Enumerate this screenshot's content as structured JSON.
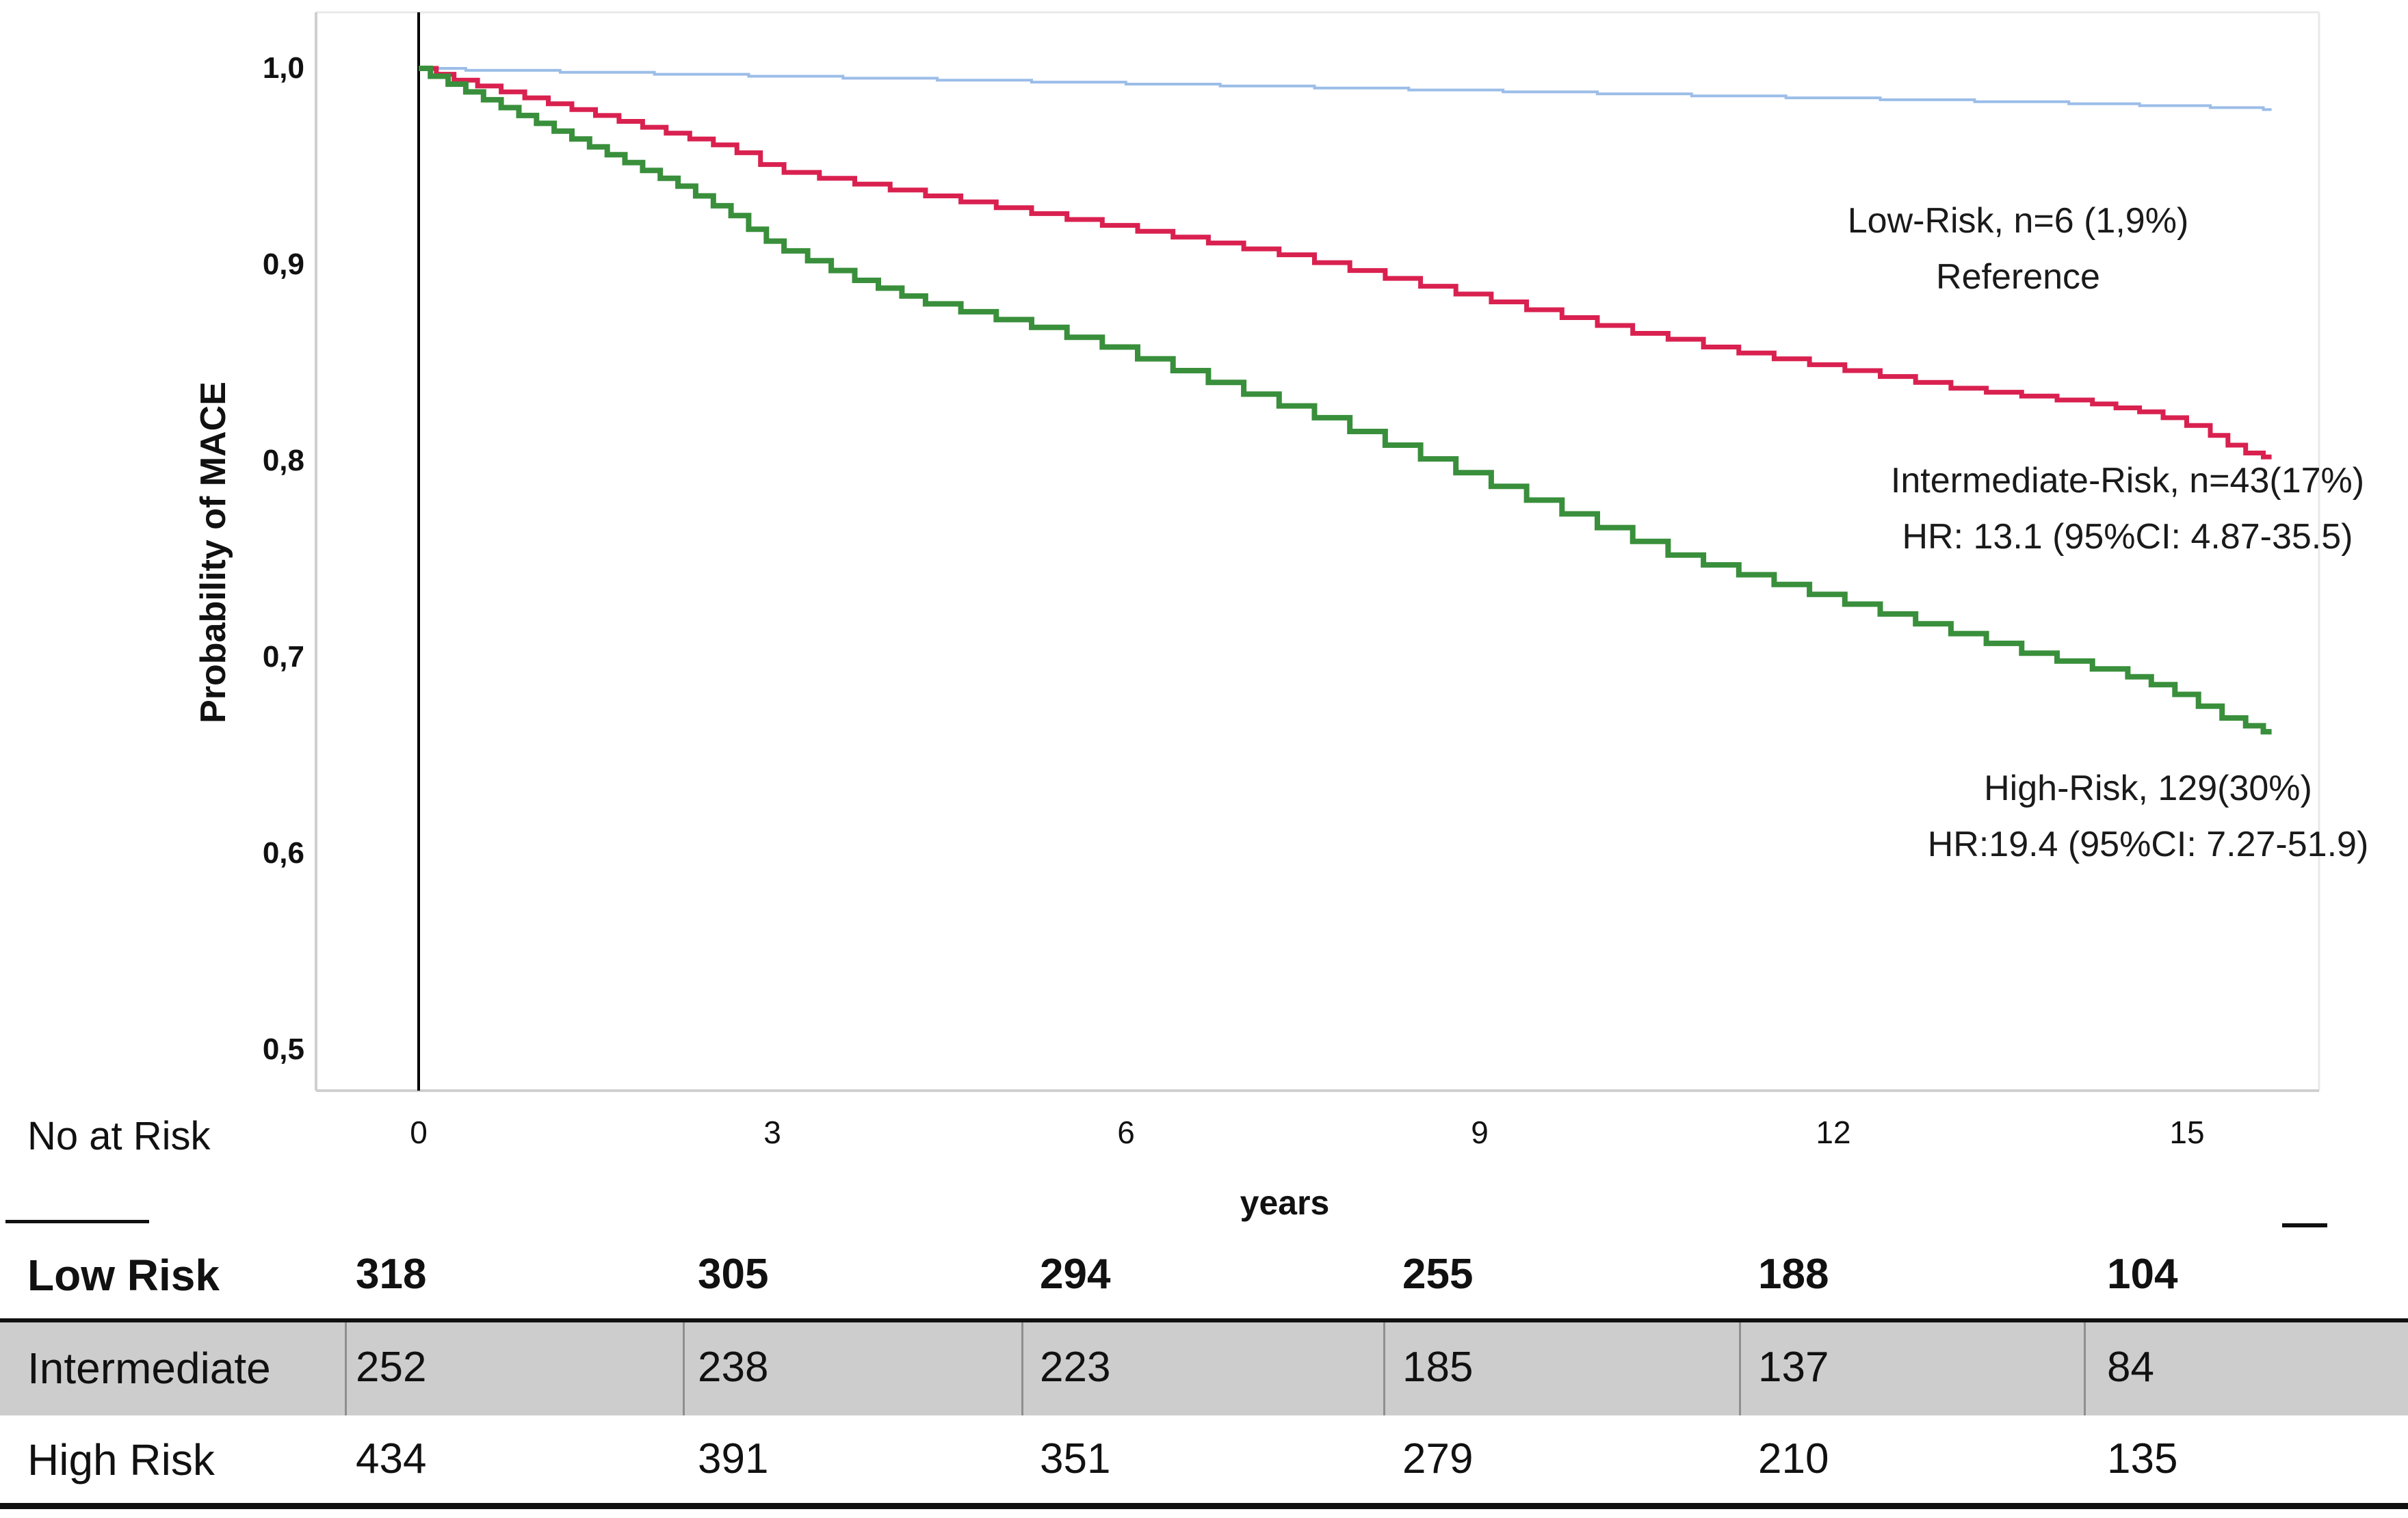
{
  "chart_data": {
    "type": "line",
    "subtype": "kaplan-meier-step",
    "title": "",
    "xlabel": "years",
    "ylabel": "Probability of MACE",
    "x_ticks": [
      "0",
      "3",
      "6",
      "9",
      "12",
      "15"
    ],
    "y_tick_labels": [
      "1,0",
      "0,9",
      "0,8",
      "0,7",
      "0,6",
      "0,5"
    ],
    "y_tick_values": [
      1.0,
      0.9,
      0.8,
      0.7,
      0.6,
      0.5
    ],
    "xlim": [
      -0.9,
      16.1
    ],
    "ylim": [
      0.479,
      1.005
    ],
    "grid": false,
    "legend_position": "annotations-right",
    "axis_color": "#cfcfcf",
    "reference_line_x": 0,
    "series": [
      {
        "name": "Low-Risk",
        "color": "#9bbde8",
        "stroke_width": 4,
        "x": [
          0,
          0.4,
          1.2,
          2.0,
          2.8,
          3.6,
          4.4,
          5.2,
          6.0,
          6.8,
          7.6,
          8.4,
          9.2,
          10.0,
          10.8,
          11.6,
          12.4,
          13.2,
          14.0,
          14.6,
          15.2,
          15.65
        ],
        "y": [
          1.0,
          0.999,
          0.998,
          0.997,
          0.996,
          0.995,
          0.994,
          0.993,
          0.992,
          0.991,
          0.99,
          0.989,
          0.988,
          0.987,
          0.986,
          0.985,
          0.984,
          0.983,
          0.982,
          0.981,
          0.98,
          0.979
        ]
      },
      {
        "name": "Intermediate-Risk",
        "color": "#d92150",
        "stroke_width": 7,
        "x": [
          0,
          0.15,
          0.3,
          0.5,
          0.7,
          0.9,
          1.1,
          1.3,
          1.5,
          1.7,
          1.9,
          2.1,
          2.3,
          2.5,
          2.7,
          2.9,
          3.1,
          3.4,
          3.7,
          4.0,
          4.3,
          4.6,
          4.9,
          5.2,
          5.5,
          5.8,
          6.1,
          6.4,
          6.7,
          7.0,
          7.3,
          7.6,
          7.9,
          8.2,
          8.5,
          8.8,
          9.1,
          9.4,
          9.7,
          10.0,
          10.3,
          10.6,
          10.9,
          11.2,
          11.5,
          11.8,
          12.1,
          12.4,
          12.7,
          13.0,
          13.3,
          13.6,
          13.9,
          14.2,
          14.4,
          14.6,
          14.8,
          15.0,
          15.2,
          15.35,
          15.5,
          15.65
        ],
        "y": [
          1.0,
          0.997,
          0.994,
          0.991,
          0.988,
          0.985,
          0.982,
          0.979,
          0.976,
          0.973,
          0.97,
          0.967,
          0.964,
          0.961,
          0.957,
          0.951,
          0.947,
          0.944,
          0.941,
          0.938,
          0.935,
          0.932,
          0.929,
          0.926,
          0.923,
          0.92,
          0.917,
          0.914,
          0.911,
          0.908,
          0.905,
          0.901,
          0.897,
          0.893,
          0.889,
          0.885,
          0.881,
          0.877,
          0.873,
          0.869,
          0.865,
          0.862,
          0.858,
          0.855,
          0.852,
          0.849,
          0.846,
          0.843,
          0.84,
          0.837,
          0.835,
          0.833,
          0.831,
          0.829,
          0.827,
          0.825,
          0.822,
          0.818,
          0.813,
          0.808,
          0.804,
          0.802
        ]
      },
      {
        "name": "High-Risk",
        "color": "#398f3b",
        "stroke_width": 8,
        "x": [
          0,
          0.1,
          0.25,
          0.4,
          0.55,
          0.7,
          0.85,
          1.0,
          1.15,
          1.3,
          1.45,
          1.6,
          1.75,
          1.9,
          2.05,
          2.2,
          2.35,
          2.5,
          2.65,
          2.8,
          2.95,
          3.1,
          3.3,
          3.5,
          3.7,
          3.9,
          4.1,
          4.3,
          4.6,
          4.9,
          5.2,
          5.5,
          5.8,
          6.1,
          6.4,
          6.7,
          7.0,
          7.3,
          7.6,
          7.9,
          8.2,
          8.5,
          8.8,
          9.1,
          9.4,
          9.7,
          10.0,
          10.3,
          10.6,
          10.9,
          11.2,
          11.5,
          11.8,
          12.1,
          12.4,
          12.7,
          13.0,
          13.3,
          13.6,
          13.9,
          14.2,
          14.5,
          14.7,
          14.9,
          15.1,
          15.3,
          15.5,
          15.65
        ],
        "y": [
          1.0,
          0.996,
          0.992,
          0.988,
          0.984,
          0.98,
          0.976,
          0.972,
          0.968,
          0.964,
          0.96,
          0.956,
          0.952,
          0.948,
          0.944,
          0.94,
          0.935,
          0.93,
          0.925,
          0.918,
          0.912,
          0.907,
          0.902,
          0.897,
          0.892,
          0.888,
          0.884,
          0.88,
          0.876,
          0.872,
          0.868,
          0.863,
          0.858,
          0.852,
          0.846,
          0.84,
          0.834,
          0.828,
          0.822,
          0.815,
          0.808,
          0.801,
          0.794,
          0.787,
          0.78,
          0.773,
          0.766,
          0.759,
          0.752,
          0.747,
          0.742,
          0.737,
          0.732,
          0.727,
          0.722,
          0.717,
          0.712,
          0.707,
          0.702,
          0.698,
          0.694,
          0.69,
          0.686,
          0.681,
          0.675,
          0.669,
          0.665,
          0.662
        ]
      }
    ],
    "annotations": [
      {
        "lines": [
          "Low-Risk, n=6 (1,9%)",
          "Reference"
        ]
      },
      {
        "lines": [
          "Intermediate-Risk, n=43(17%)",
          "HR: 13.1 (95%CI: 4.87-35.5)"
        ]
      },
      {
        "lines": [
          "High-Risk, 129(30%)",
          "HR:19.4 (95%CI: 7.27-51.9)"
        ]
      }
    ]
  },
  "risk_table": {
    "title": "No at Risk",
    "columns": [
      "0",
      "3",
      "6",
      "9",
      "12",
      "15"
    ],
    "rows": [
      {
        "label": "Low Risk",
        "values": [
          "318",
          "305",
          "294",
          "255",
          "188",
          "104"
        ]
      },
      {
        "label": "Intermediate",
        "values": [
          "252",
          "238",
          "223",
          "185",
          "137",
          "84"
        ]
      },
      {
        "label": "High Risk",
        "values": [
          "434",
          "391",
          "351",
          "279",
          "210",
          "135"
        ]
      }
    ]
  }
}
